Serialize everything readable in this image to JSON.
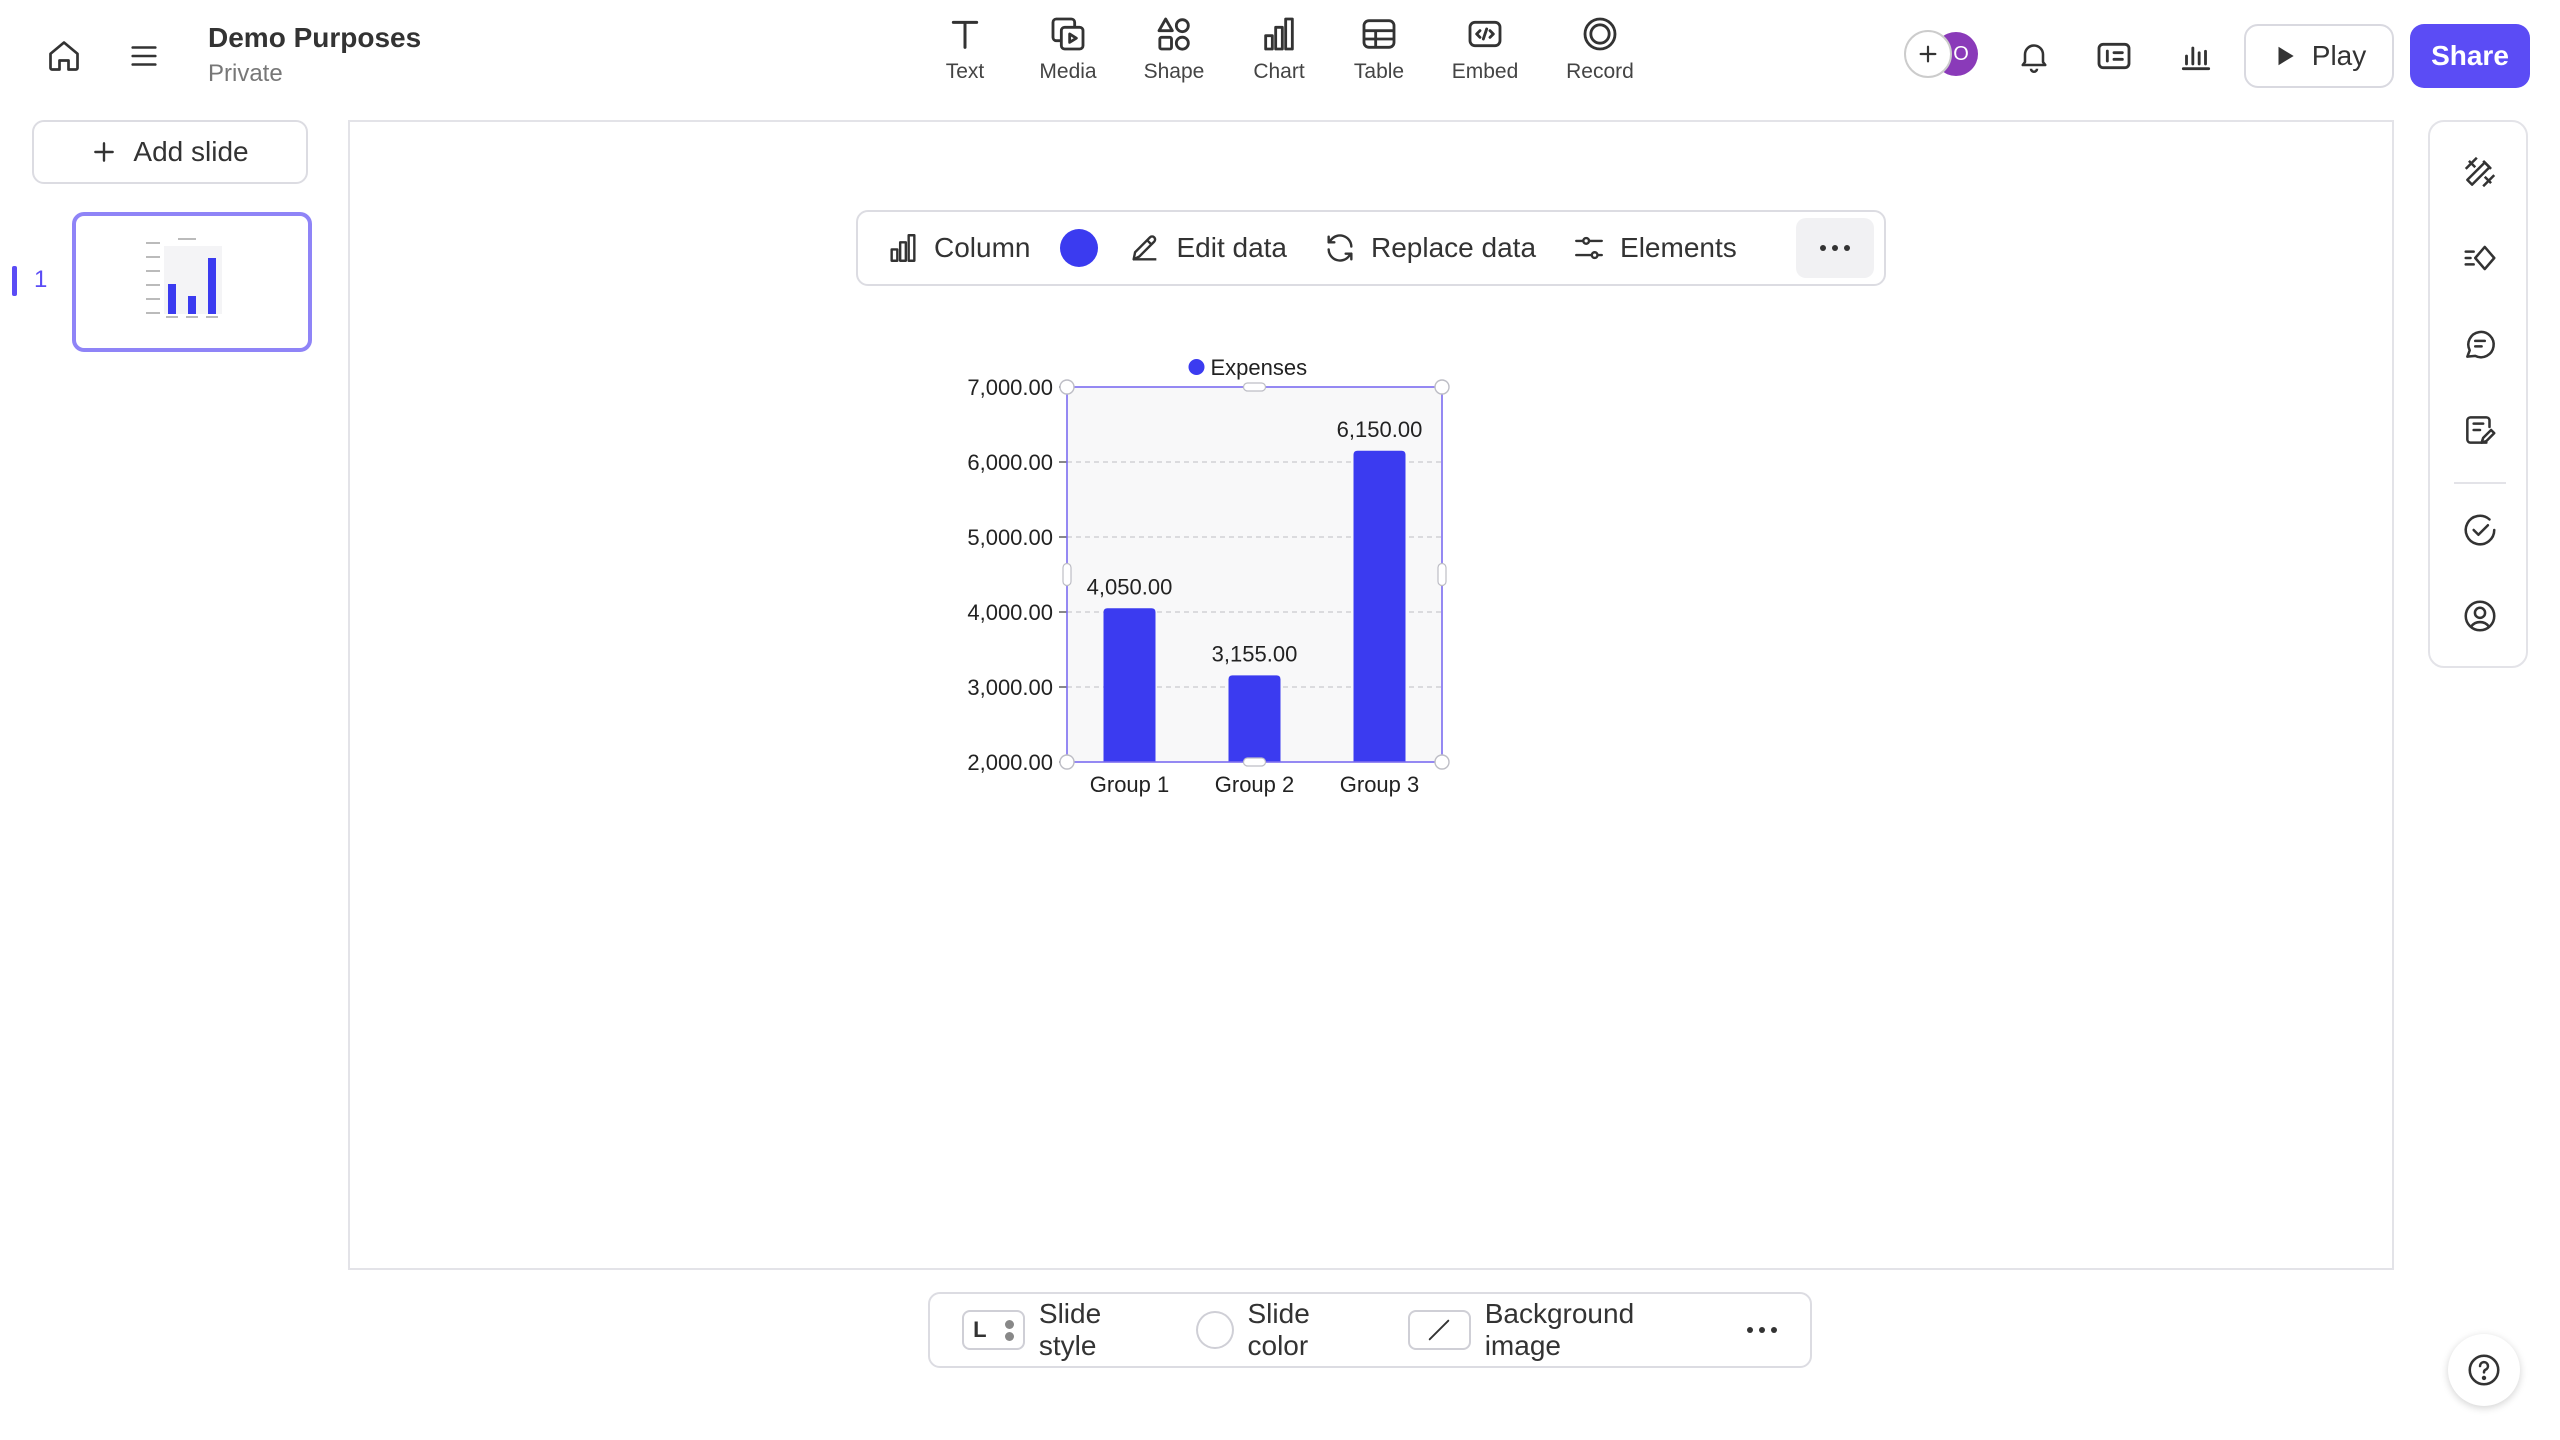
{
  "header": {
    "title": "Demo Purposes",
    "visibility": "Private",
    "insert_tools": [
      {
        "label": "Text",
        "icon": "text-icon"
      },
      {
        "label": "Media",
        "icon": "media-icon"
      },
      {
        "label": "Shape",
        "icon": "shape-icon"
      },
      {
        "label": "Chart",
        "icon": "chart-icon"
      },
      {
        "label": "Table",
        "icon": "table-icon"
      },
      {
        "label": "Embed",
        "icon": "embed-icon"
      },
      {
        "label": "Record",
        "icon": "record-icon"
      }
    ],
    "avatar_initial": "O",
    "play_label": "Play",
    "share_label": "Share"
  },
  "left_panel": {
    "add_slide_label": "Add slide",
    "slides": [
      {
        "number": "1"
      }
    ]
  },
  "chart_toolbar": {
    "type_label": "Column",
    "series_color": "#3b3bf0",
    "edit_label": "Edit data",
    "replace_label": "Replace data",
    "elements_label": "Elements"
  },
  "chart_data": {
    "type": "bar",
    "categories": [
      "Group 1",
      "Group 2",
      "Group 3"
    ],
    "series": [
      {
        "name": "Expenses",
        "values": [
          4050,
          3155,
          6150
        ],
        "color": "#3b3bf0"
      }
    ],
    "data_labels": [
      "4,050.00",
      "3,155.00",
      "6,150.00"
    ],
    "y_ticks": [
      "2,000.00",
      "3,000.00",
      "4,000.00",
      "5,000.00",
      "6,000.00",
      "7,000.00"
    ],
    "ylim": [
      2000,
      7000
    ],
    "grid": true,
    "legend_position": "top"
  },
  "bottom_bar": {
    "style_chip_letter": "L",
    "style_label": "Slide style",
    "color_label": "Slide color",
    "background_label": "Background image"
  },
  "colors": {
    "accent": "#5b4cf5",
    "bar": "#3b3bf0",
    "selection": "#7b6cf0"
  }
}
